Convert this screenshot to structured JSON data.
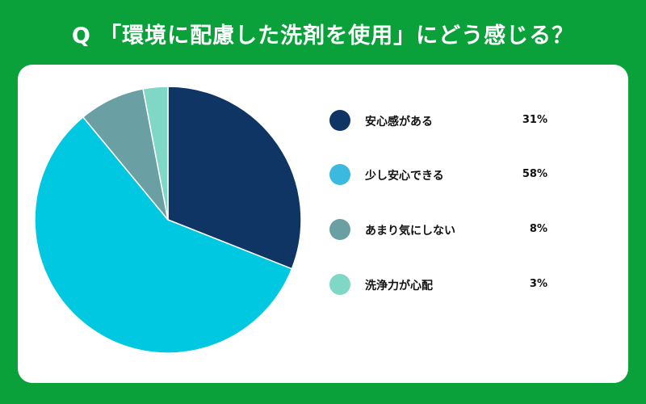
{
  "title": "Q 「環境に配慮した洗剤を使用」にどう感じる？",
  "chart_data": {
    "type": "pie",
    "slices": [
      {
        "label": "安心感がある",
        "value": 31,
        "display": "31%",
        "color": "#0f3565"
      },
      {
        "label": "少し安心できる",
        "value": 58,
        "display": "58%",
        "color": "#00c8e0"
      },
      {
        "label": "あまり気にしない",
        "value": 8,
        "display": "8%",
        "color": "#6a9fa3"
      },
      {
        "label": "洗浄力が心配",
        "value": 3,
        "display": "3%",
        "color": "#7fd8c6"
      }
    ],
    "legend_swatch_colors": [
      "#0f3565",
      "#3bb9de",
      "#6a9fa3",
      "#7fd8c6"
    ],
    "legend_position": "right",
    "start_angle": "12 o'clock",
    "direction": "clockwise"
  },
  "colors": {
    "background": "#0aa13a",
    "card": "#ffffff",
    "slice_border": "#ffffff"
  }
}
